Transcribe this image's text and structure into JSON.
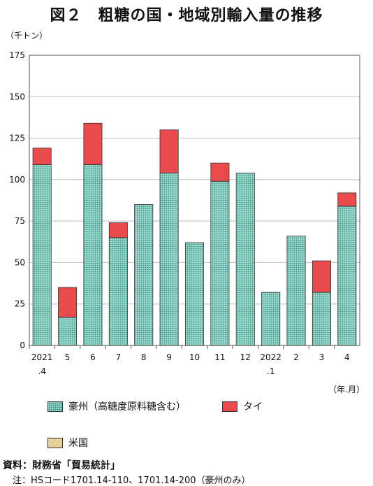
{
  "title": "図２　粗糖の国・地域別輸入量の推移",
  "unit_label": "（千トン）",
  "x_unit_label": "（年.月）",
  "legend": {
    "australia": "豪州（高糖度原料糖含む）",
    "thailand": "タイ",
    "usa": "米国"
  },
  "source_label": "資料：財務省「貿易統計」",
  "note": "注：HSコード1701.14-110、1701.14-200（豪州のみ）",
  "colors": {
    "australia": "#9fd8cc",
    "australia_dot": "#2a8f80",
    "thailand": "#e84b4b",
    "usa": "#f3dfae"
  },
  "chart_data": {
    "type": "bar",
    "stacked": true,
    "ylim": [
      0,
      175
    ],
    "yticks": [
      0,
      25,
      50,
      75,
      100,
      125,
      150,
      175
    ],
    "grid": true,
    "categories": [
      [
        "2021",
        ".4"
      ],
      [
        "5"
      ],
      [
        "6"
      ],
      [
        "7"
      ],
      [
        "8"
      ],
      [
        "9"
      ],
      [
        "10"
      ],
      [
        "11"
      ],
      [
        "12"
      ],
      [
        "2022",
        ".1"
      ],
      [
        "2"
      ],
      [
        "3"
      ],
      [
        "4"
      ]
    ],
    "series": [
      {
        "name": "豪州（高糖度原料糖含む）",
        "key": "australia",
        "values": [
          109,
          17,
          109,
          65,
          85,
          104,
          62,
          99,
          104,
          32,
          66,
          32,
          84
        ]
      },
      {
        "name": "タイ",
        "key": "thailand",
        "values": [
          10,
          18,
          25,
          9,
          0,
          26,
          0,
          11,
          0,
          0,
          0,
          19,
          8
        ]
      },
      {
        "name": "米国",
        "key": "usa",
        "values": [
          0,
          0,
          0,
          0,
          0,
          0,
          0,
          0,
          0,
          0,
          0,
          0,
          0
        ]
      }
    ]
  }
}
